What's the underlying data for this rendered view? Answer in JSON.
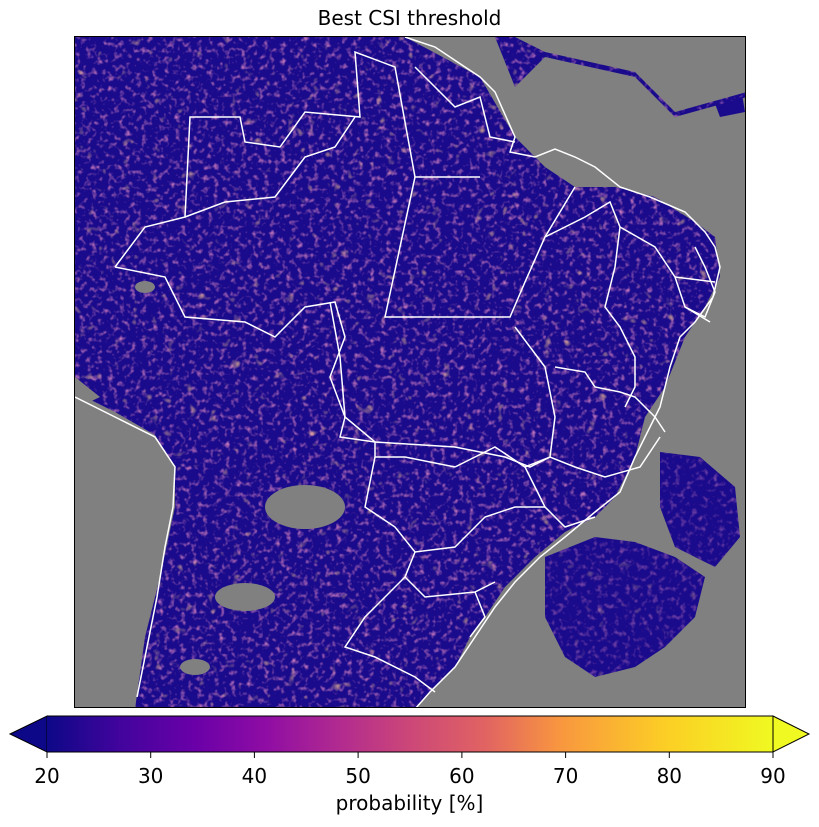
{
  "title": "Best CSI threshold",
  "colorbar": {
    "label": "probability [%]",
    "ticks": [
      "20",
      "30",
      "40",
      "50",
      "60",
      "70",
      "80",
      "90"
    ],
    "min": 20,
    "max": 90,
    "colormap": "plasma",
    "extend": "both"
  },
  "colors": {
    "ocean_nodata": "#808080",
    "borders": "#ffffff",
    "low": "#0d0887",
    "high": "#f0f921"
  }
}
